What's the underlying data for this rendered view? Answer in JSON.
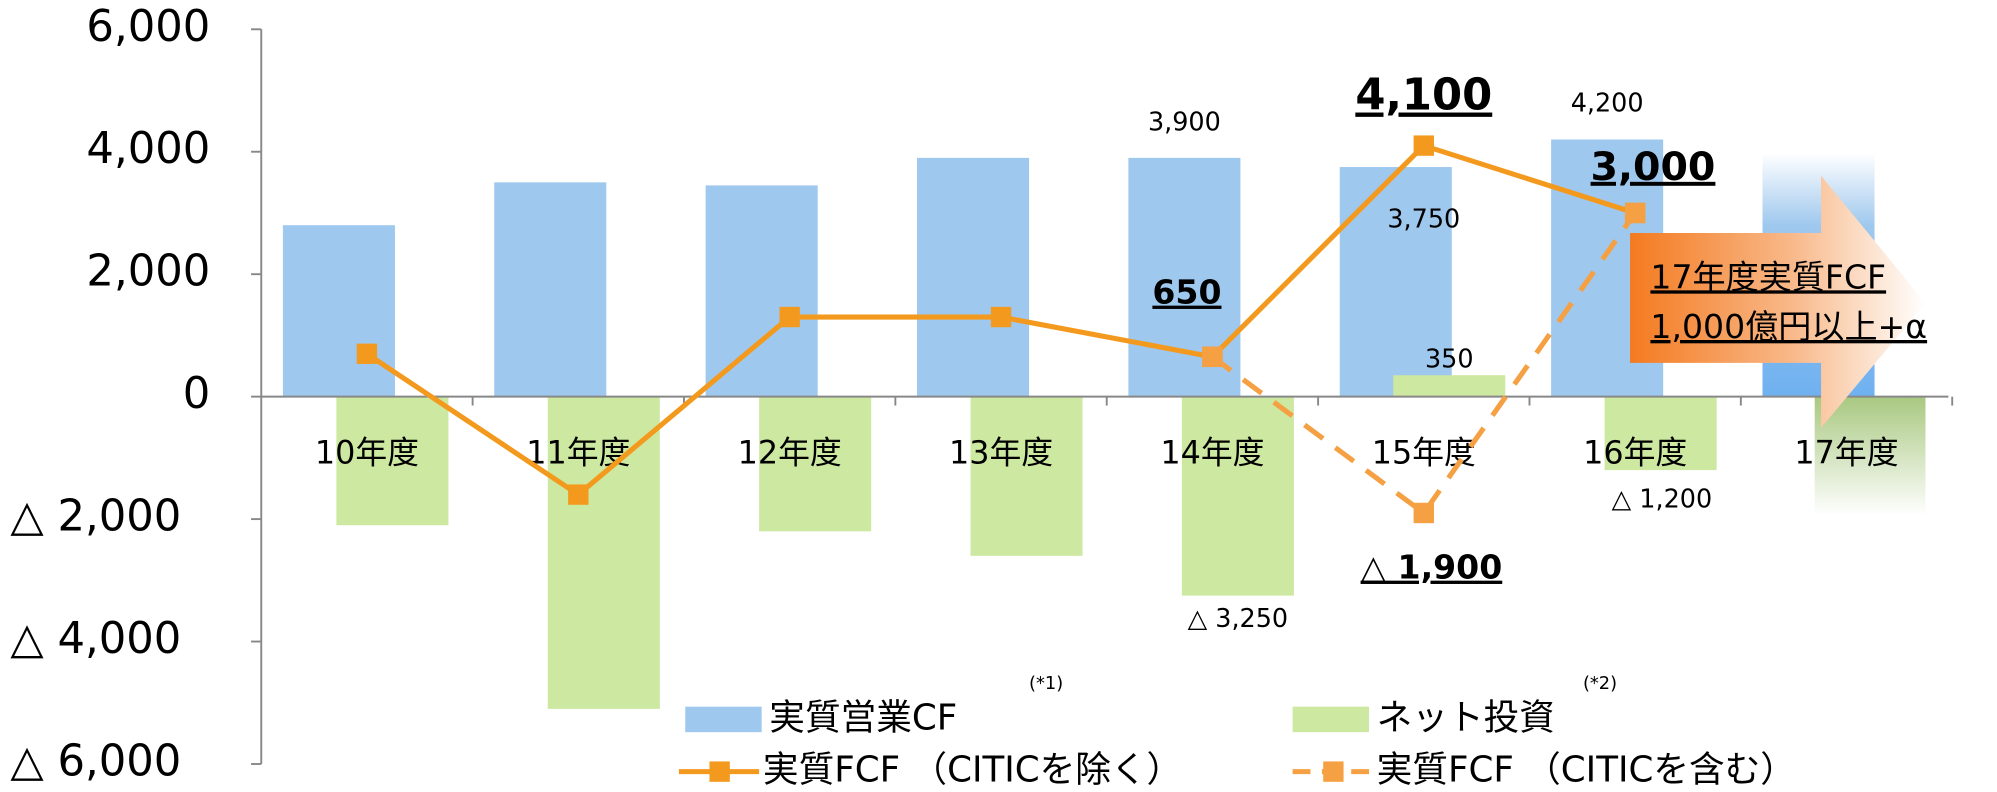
{
  "chart_data": {
    "type": "bar-line",
    "categories": [
      "10年度",
      "11年度",
      "12年度",
      "13年度",
      "14年度",
      "15年度",
      "16年度",
      "17年度"
    ],
    "ylim": [
      -6000,
      6000
    ],
    "yticks": [
      {
        "value": 6000,
        "label": "6,000"
      },
      {
        "value": 4000,
        "label": "4,000"
      },
      {
        "value": 2000,
        "label": "2,000"
      },
      0,
      {
        "value": -2000,
        "label": "△ 2,000"
      },
      {
        "value": -4000,
        "label": "△ 4,000"
      },
      {
        "value": -6000,
        "label": "△ 6,000"
      }
    ],
    "series": [
      {
        "name": "実質営業CF",
        "type": "bar",
        "color": "#9fc8ee",
        "values": [
          2800,
          3500,
          3450,
          3900,
          3900,
          3750,
          4200,
          null
        ],
        "value_labels": [
          null,
          null,
          null,
          null,
          "3,900",
          "3,750",
          "4,200",
          null
        ],
        "note": "(*1)"
      },
      {
        "name": "ネット投資",
        "type": "bar",
        "color": "#cde8a0",
        "values": [
          -2100,
          -5100,
          -2200,
          -2600,
          -3250,
          350,
          -1200,
          null
        ],
        "value_labels": [
          null,
          null,
          null,
          null,
          "△ 3,250",
          "350",
          "△ 1,200",
          null
        ],
        "note": "(*2)"
      },
      {
        "name": "実質FCF （CITICを除く）",
        "type": "line",
        "color": "#f39a1e",
        "values": [
          700,
          -1600,
          1300,
          1300,
          650,
          4100,
          3000,
          null
        ],
        "value_labels": [
          null,
          null,
          null,
          null,
          "650",
          "4,100",
          "3,000",
          null
        ]
      },
      {
        "name": "実質FCF （CITICを含む）",
        "type": "line",
        "dashed": true,
        "color": "#f5a042",
        "values": [
          null,
          null,
          null,
          null,
          650,
          -1900,
          3000,
          null
        ],
        "value_labels": [
          null,
          null,
          null,
          null,
          null,
          "△ 1,900",
          null,
          null
        ]
      }
    ],
    "callout": [
      "17年度実質FCF",
      "1,000億円以上+α"
    ]
  }
}
